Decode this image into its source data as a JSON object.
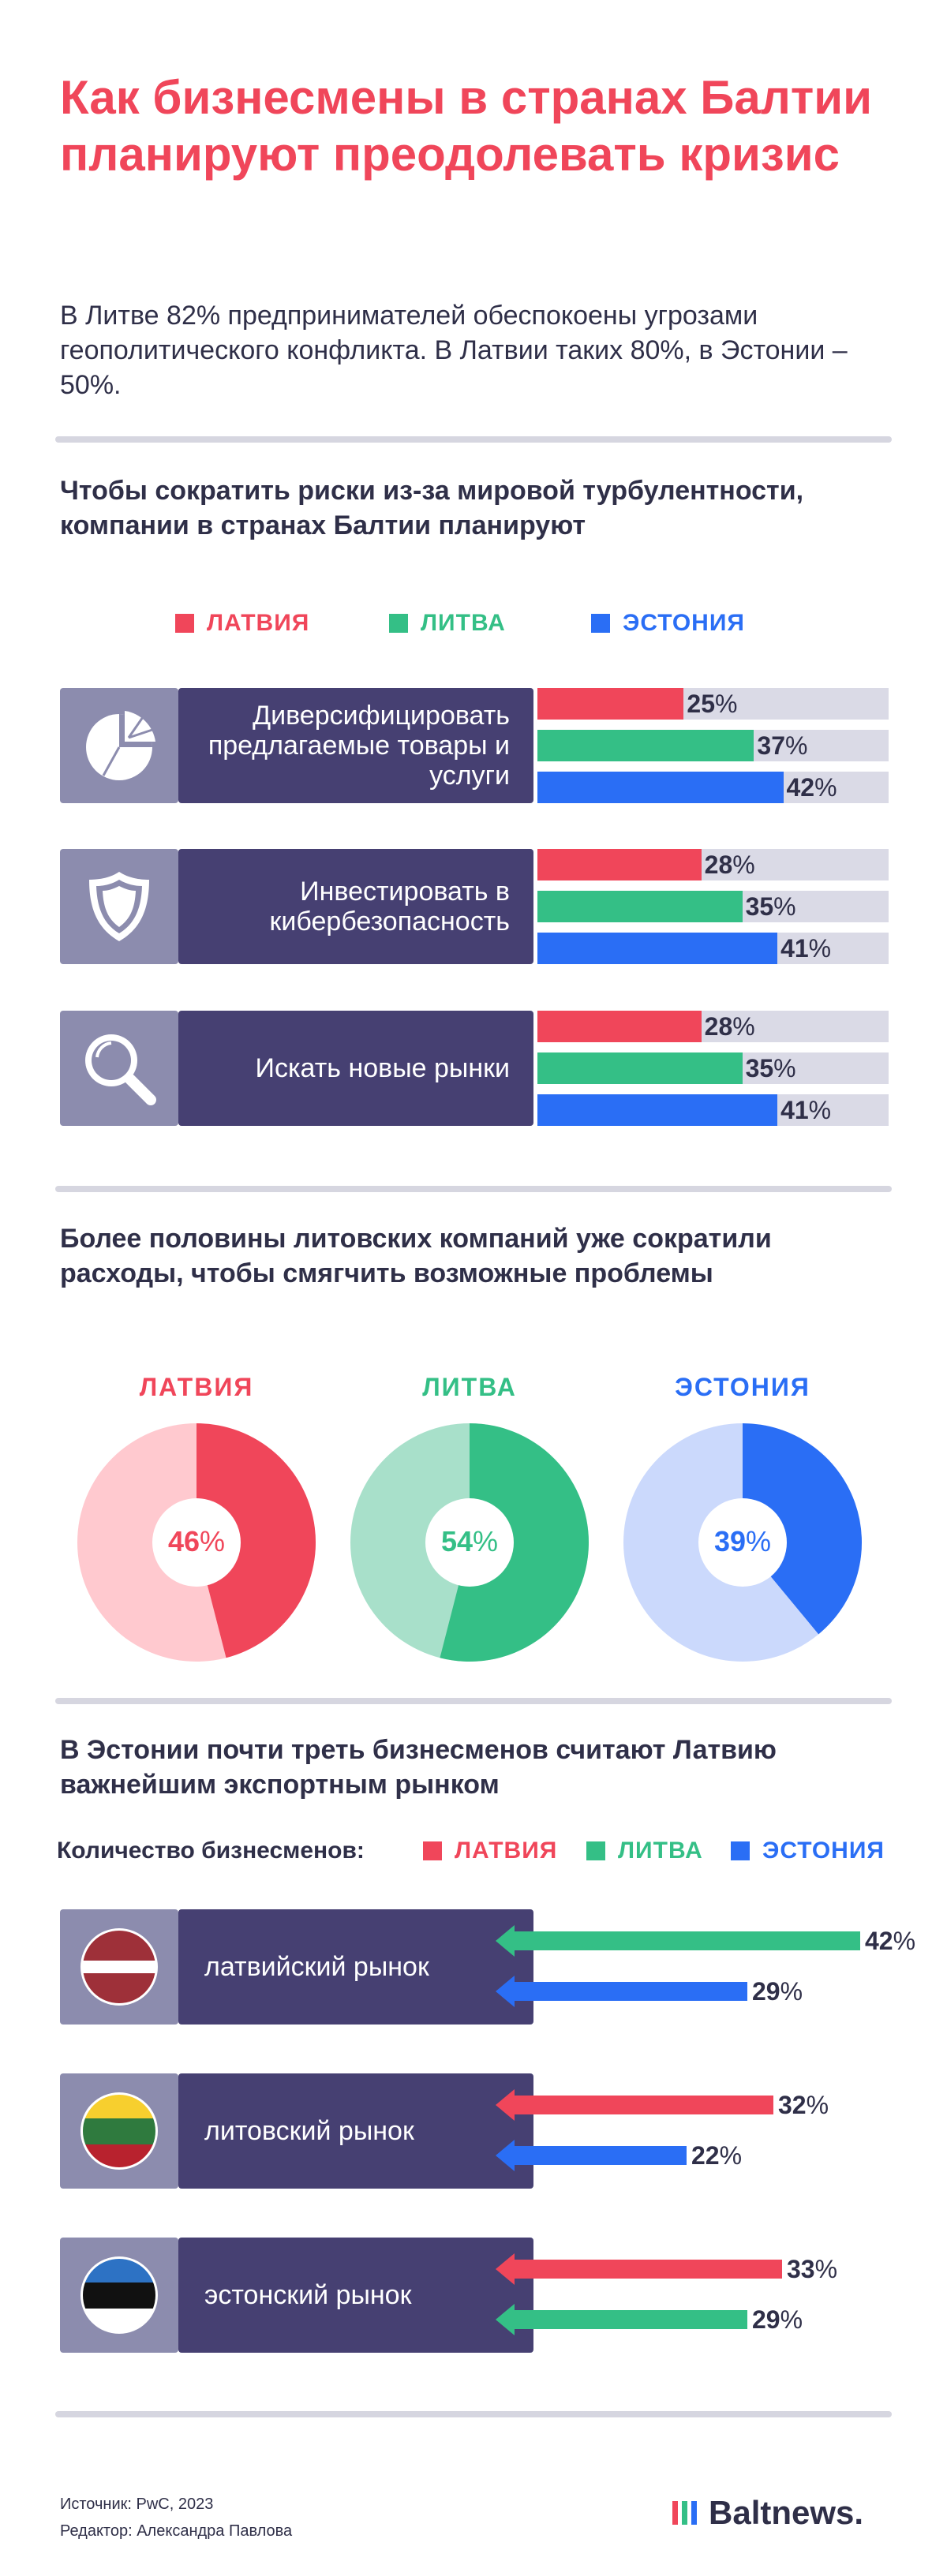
{
  "title": "Как бизнесмены в странах Балтии планируют преодолевать кризис",
  "intro": "В Литве 82% предпринимателей обеспокоены угрозами геополитического конфликта. В Латвии таких 80%, в Эстонии – 50%.",
  "colors": {
    "latvia": "#f0465a",
    "lithuania": "#34bf86",
    "estonia": "#2a6ef5",
    "panel_dark": "#464072",
    "panel_light": "#8c8cae",
    "track": "#dadae6"
  },
  "legend": {
    "latvia": "ЛАТВИЯ",
    "lithuania": "ЛИТВА",
    "estonia": "ЭСТОНИЯ"
  },
  "chart_data": [
    {
      "type": "bar",
      "title": "Чтобы сократить риски из-за мировой турбулентности, компании в странах Балтии планируют",
      "categories": [
        "Диверсифицировать предлагаемые товары и услуги",
        "Инвестировать в кибербезопасность",
        "Искать новые рынки"
      ],
      "category_icons": [
        "pie-chart-icon",
        "shield-icon",
        "magnifier-icon"
      ],
      "unit": "%",
      "series": [
        {
          "name": "ЛАТВИЯ",
          "color": "#f0465a",
          "values": [
            25,
            28,
            28
          ]
        },
        {
          "name": "ЛИТВА",
          "color": "#34bf86",
          "values": [
            37,
            35,
            35
          ]
        },
        {
          "name": "ЭСТОНИЯ",
          "color": "#2a6ef5",
          "values": [
            42,
            41,
            41
          ]
        }
      ],
      "xlim": [
        0,
        60
      ],
      "legend": "top"
    },
    {
      "type": "pie",
      "title": "Более половины литовских компаний уже сократили расходы, чтобы смягчить возможные проблемы",
      "unit": "%",
      "slices": [
        {
          "name": "ЛАТВИЯ",
          "value": 46,
          "color": "#f0465a",
          "rest_color": "#ffc9cf"
        },
        {
          "name": "ЛИТВА",
          "value": 54,
          "color": "#34bf86",
          "rest_color": "#a8e0ca"
        },
        {
          "name": "ЭСТОНИЯ",
          "value": 39,
          "color": "#2a6ef5",
          "rest_color": "#cbd9fc"
        }
      ]
    },
    {
      "type": "bar",
      "title": "В Эстонии почти треть бизнесменов считают Латвию важнейшим экспортным рынком",
      "legend_prefix": "Количество бизнесменов:",
      "categories": [
        "латвийский рынок",
        "литовский рынок",
        "эстонский рынок"
      ],
      "category_icons": [
        "latvia-flag-icon",
        "lithuania-flag-icon",
        "estonia-flag-icon"
      ],
      "unit": "%",
      "groups": [
        {
          "bars": [
            {
              "series": "ЛИТВА",
              "color": "#34bf86",
              "value": 42
            },
            {
              "series": "ЭСТОНИЯ",
              "color": "#2a6ef5",
              "value": 29
            }
          ]
        },
        {
          "bars": [
            {
              "series": "ЛАТВИЯ",
              "color": "#f0465a",
              "value": 32
            },
            {
              "series": "ЭСТОНИЯ",
              "color": "#2a6ef5",
              "value": 22
            }
          ]
        },
        {
          "bars": [
            {
              "series": "ЛАТВИЯ",
              "color": "#f0465a",
              "value": 33
            },
            {
              "series": "ЛИТВА",
              "color": "#34bf86",
              "value": 29
            }
          ]
        }
      ],
      "xlim": [
        0,
        42
      ],
      "legend": "top"
    }
  ],
  "footer": {
    "source": "Источник: PwC, 2023",
    "editor": "Редактор: Александра Павлова",
    "brand": "Baltnews."
  }
}
